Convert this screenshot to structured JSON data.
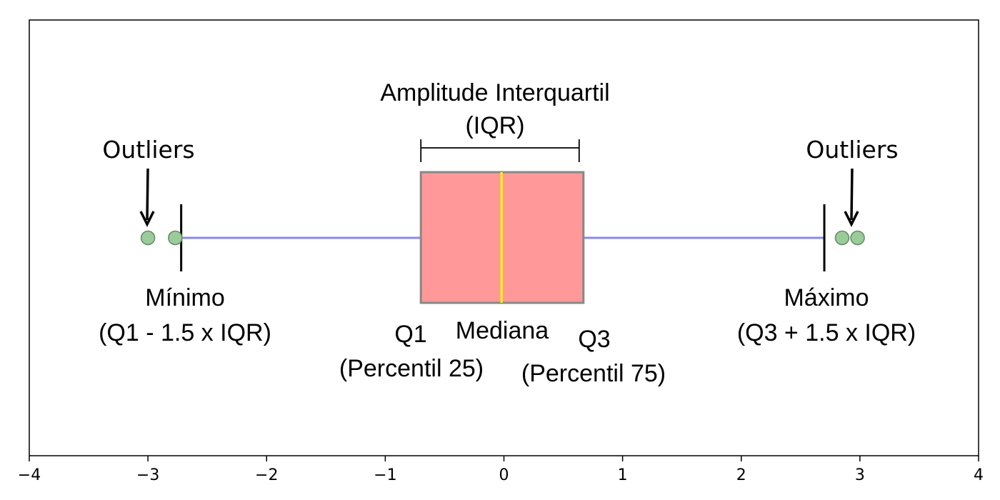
{
  "chart_data": {
    "type": "box",
    "xlim": [
      -4,
      4
    ],
    "x_ticks": [
      {
        "value": -4,
        "label": "−4"
      },
      {
        "value": -3,
        "label": "−3"
      },
      {
        "value": -2,
        "label": "−2"
      },
      {
        "value": -1,
        "label": "−1"
      },
      {
        "value": 0,
        "label": "0"
      },
      {
        "value": 1,
        "label": "1"
      },
      {
        "value": 2,
        "label": "2"
      },
      {
        "value": 3,
        "label": "3"
      },
      {
        "value": 4,
        "label": "4"
      }
    ],
    "box": {
      "q1": -0.7,
      "median": -0.02,
      "q3": 0.67,
      "whisker_low": -2.72,
      "whisker_high": 2.7
    },
    "outliers": [
      -3.0,
      -2.77,
      2.85,
      2.98
    ],
    "colors": {
      "box_fill": "#ff9999",
      "box_edge": "#888888",
      "median": "#ffff00",
      "whisker": "#8888ee",
      "outlier_fill": "#99cc99",
      "outlier_edge": "#668866"
    },
    "annotations": {
      "iqr_title": "Amplitude Interquartil",
      "iqr_abbr": "(IQR)",
      "outliers_left": "Outliers",
      "outliers_right": "Outliers",
      "min_title": "Mínimo",
      "min_formula": "(Q1 - 1.5 x IQR)",
      "q1_title": "Q1",
      "q1_sub": "(Percentil 25)",
      "median_title": "Mediana",
      "q3_title": "Q3",
      "q3_sub": "(Percentil 75)",
      "max_title": "Máximo",
      "max_formula": "(Q3 + 1.5 x IQR)"
    }
  }
}
